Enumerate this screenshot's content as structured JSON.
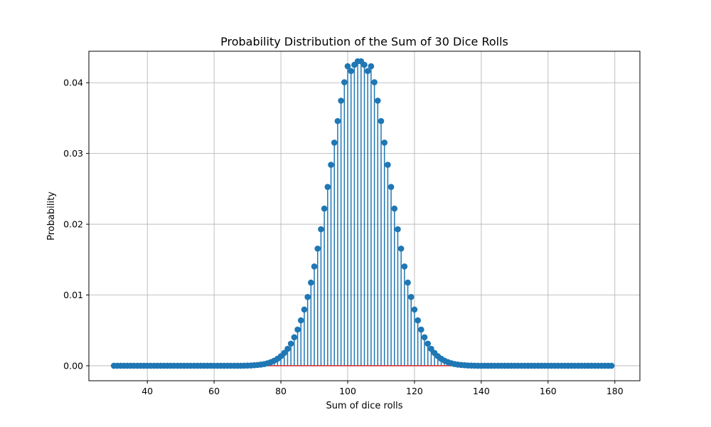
{
  "chart_data": {
    "type": "stem",
    "title": "Probability Distribution of the Sum of 30 Dice Rolls",
    "xlabel": "Sum of dice rolls",
    "ylabel": "Probability",
    "xlim": [
      22.5,
      187.5
    ],
    "ylim": [
      -0.00212,
      0.04445
    ],
    "xticks": [
      40,
      60,
      80,
      100,
      120,
      140,
      160,
      180
    ],
    "yticks": [
      0.0,
      0.01,
      0.02,
      0.03,
      0.04
    ],
    "ytick_labels": [
      "0.00",
      "0.01",
      "0.02",
      "0.03",
      "0.04"
    ],
    "grid": true,
    "colors": {
      "stem": "#1f77b4",
      "marker": "#1f77b4",
      "baseline": "#d62728",
      "grid": "#b0b0b0"
    },
    "x_start": 30,
    "y": [
      0,
      0,
      0,
      0,
      0,
      0,
      0,
      0,
      0,
      0,
      0,
      0,
      0,
      0,
      0,
      0,
      0,
      0,
      0,
      0,
      0,
      0,
      0,
      0,
      0,
      0,
      0,
      0,
      0,
      0,
      0,
      0,
      0,
      0,
      0,
      0,
      0,
      0,
      0,
      1e-05,
      2e-05,
      4e-05,
      7e-05,
      0.00011,
      0.00016,
      0.00024,
      0.00035,
      0.00051,
      0.00072,
      0.00099,
      0.00135,
      0.00181,
      0.00239,
      0.00312,
      0.00402,
      0.00511,
      0.00641,
      0.00794,
      0.00972,
      0.01175,
      0.01403,
      0.01655,
      0.01929,
      0.02221,
      0.02527,
      0.0284,
      0.03153,
      0.03458,
      0.03746,
      0.04007,
      0.04233,
      0.04165,
      0.04253,
      0.04303,
      0.04303,
      0.04253,
      0.04165,
      0.04233,
      0.04007,
      0.03746,
      0.03458,
      0.03153,
      0.0284,
      0.02527,
      0.02221,
      0.01929,
      0.01655,
      0.01403,
      0.01175,
      0.00972,
      0.00794,
      0.00641,
      0.00511,
      0.00402,
      0.00312,
      0.00239,
      0.00181,
      0.00135,
      0.00099,
      0.00072,
      0.00051,
      0.00035,
      0.00024,
      0.00016,
      0.00011,
      7e-05,
      4e-05,
      2e-05,
      1e-05,
      0,
      0,
      0,
      0,
      0,
      0,
      0,
      0,
      0,
      0,
      0,
      0,
      0,
      0,
      0,
      0,
      0,
      0,
      0,
      0,
      0,
      0,
      0,
      0,
      0,
      0,
      0,
      0,
      0,
      0,
      0,
      0,
      0,
      0,
      0,
      0,
      0,
      0,
      0,
      0,
      0
    ]
  }
}
